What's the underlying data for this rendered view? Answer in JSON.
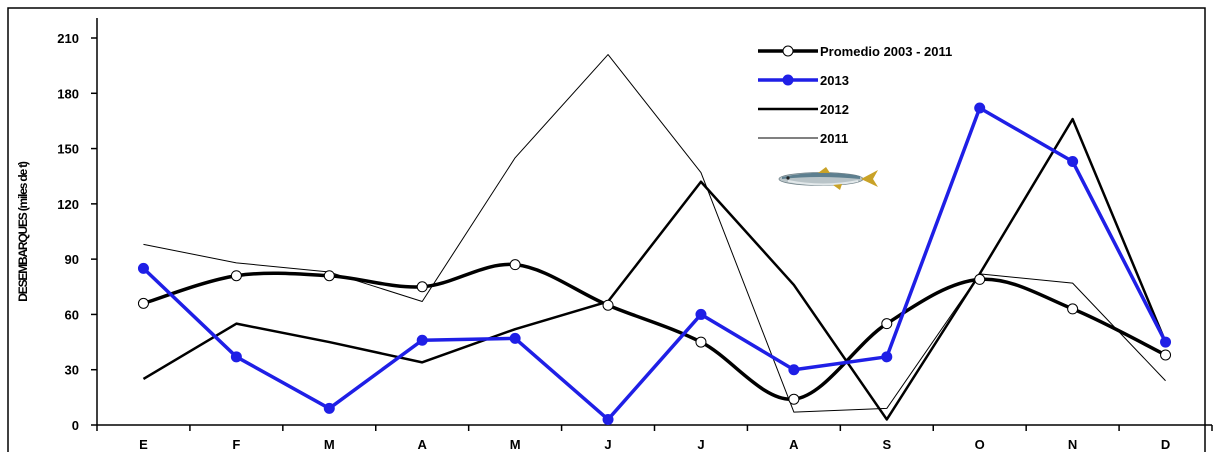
{
  "chart_data": {
    "type": "line",
    "title": "",
    "xlabel": "",
    "ylabel": "DESEMBARQUES (miles de t)",
    "categories": [
      "E",
      "F",
      "M",
      "A",
      "M",
      "J",
      "J",
      "A",
      "S",
      "O",
      "N",
      "D"
    ],
    "ylim": [
      0,
      210
    ],
    "yticks": [
      0,
      30,
      60,
      90,
      120,
      150,
      180,
      210
    ],
    "grid": false,
    "legend_position": "top-right",
    "series": [
      {
        "name": "Promedio 2003 - 2011",
        "values": [
          66,
          81,
          81,
          75,
          87,
          65,
          45,
          14,
          55,
          79,
          63,
          38
        ],
        "color": "#000000",
        "style": "thick-smooth-open-circle-markers"
      },
      {
        "name": "2013",
        "values": [
          85,
          37,
          9,
          46,
          47,
          3,
          60,
          30,
          37,
          172,
          143,
          45
        ],
        "color": "#1f1fe6",
        "style": "thick-filled-circle-markers"
      },
      {
        "name": "2012",
        "values": [
          25,
          55,
          45,
          34,
          52,
          67,
          132,
          76,
          3,
          82,
          166,
          45
        ],
        "color": "#000000",
        "style": "medium-line"
      },
      {
        "name": "2011",
        "values": [
          98,
          88,
          83,
          67,
          145,
          201,
          137,
          7,
          9,
          82,
          77,
          24
        ],
        "color": "#000000",
        "style": "thin-line"
      }
    ]
  },
  "decoration": {
    "fish_icon": "anchovy-fish-icon"
  }
}
